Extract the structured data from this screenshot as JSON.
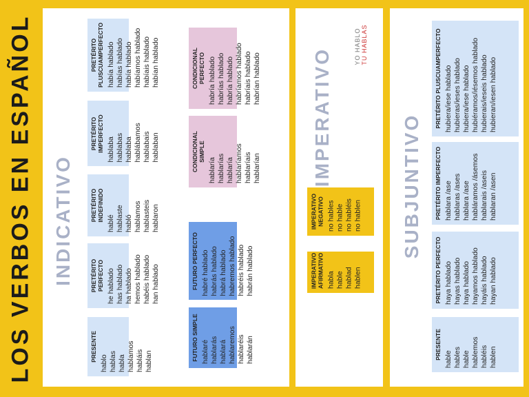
{
  "main_title": "LOS VERBOS EN ESPAÑOL",
  "logo": {
    "line1": "YO HABLO",
    "line2": "TU HABLAS"
  },
  "indicativo": {
    "title": "INDICATIVO",
    "presente": {
      "header": "PRESENTE",
      "forms": [
        "hablo",
        "hablas",
        "habla",
        "hablamos",
        "habláis",
        "hablan"
      ]
    },
    "preterito_perfecto": {
      "header": "PRETÉRITO PERFECTO",
      "forms": [
        "he hablado",
        "has hablado",
        "ha hablado",
        "hemos hablado",
        "habéis hablado",
        "han hablado"
      ]
    },
    "preterito_indefinido": {
      "header": "PRETÉRITO INDEFINIDO",
      "forms": [
        "hablé",
        "hablaste",
        "habló",
        "hablamos",
        "hablasteis",
        "hablaron"
      ]
    },
    "preterito_imperfecto": {
      "header": "PRETÉRITO IMPERFECTO",
      "forms": [
        "hablaba",
        "hablabas",
        "hablaba",
        "hablábamos",
        "hablabais",
        "hablaban"
      ]
    },
    "preterito_pluscuamperfecto": {
      "header": "PRETÉRITO PLUSCUAMPERFECTO",
      "forms": [
        "había hablado",
        "habías hablado",
        "había hablado",
        "habíamos hablado",
        "habíais hablado",
        "habían hablado"
      ]
    },
    "futuro_simple": {
      "header": "FUTURO SIMPLE",
      "forms": [
        "hablaré",
        "hablarás",
        "hablará",
        "hablaremos",
        "hablaréis",
        "hablarán"
      ]
    },
    "futuro_perfecto": {
      "header": "FUTURO PERFECTO",
      "forms": [
        "habré hablado",
        "habrás hablado",
        "habrá hablado",
        "habremos hablado",
        "habréis hablado",
        "habrán hablado"
      ]
    },
    "condicional_simple": {
      "header": "CONDICIONAL SIMPLE",
      "forms": [
        "hablaría",
        "hablarías",
        "hablaría",
        "hablaríamos",
        "hablaríais",
        "hablarían"
      ]
    },
    "condicional_perfecto": {
      "header": "CONDICIONAL PERFECTO",
      "forms": [
        "habría hablado",
        "habrías hablado",
        "habría hablado",
        "habríamos hablado",
        "habríais hablado",
        "habrían hablado"
      ]
    }
  },
  "imperativo": {
    "title": "IMPERATIVO",
    "afirmativo": {
      "header": "IMPERATIVO AFIRMATIVO",
      "forms": [
        "habla",
        "hable",
        "hablad",
        "hablen"
      ]
    },
    "negativo": {
      "header": "IMPERATIVO NEGATIVO",
      "forms": [
        "no hables",
        "no hable",
        "no habléis",
        "no hablen"
      ]
    }
  },
  "subjuntivo": {
    "title": "SUBJUNTIVO",
    "presente": {
      "header": "PRESENTE",
      "forms": [
        "hable",
        "hables",
        "hable",
        "hablemos",
        "habléis",
        "hablen"
      ]
    },
    "preterito_perfecto": {
      "header": "PRETÉRITO PERFECTO",
      "forms": [
        "haya hablado",
        "hayas hablado",
        "haya hablado",
        "hayamos hablado",
        "hayáis hablado",
        "hayan hablado"
      ]
    },
    "preterito_imperfecto": {
      "header": "PRETÉRITO IMPERFECTO",
      "forms": [
        "hablara /ase",
        "hablaras /ases",
        "hablara /ase",
        "habláramos /ásemos",
        "hablarais /aseis",
        "hablaran /asen"
      ]
    },
    "preterito_pluscuamperfecto": {
      "header": "PRETÉRITO PLUSCUAMPERFECTO",
      "forms": [
        "hubiera/iese hablado",
        "hubieras/ieses hablado",
        "hubiera/iese hablado",
        "hubiéramos/iésemos hablado",
        "hubierais/ieseis hablado",
        "hubieran/iesen hablado"
      ]
    }
  },
  "colors": {
    "yellow": "#f2c318",
    "light_blue": "#d4e4f7",
    "blue": "#6f9ee6",
    "pink": "#e6c6db",
    "title_grey": "#a9b1c7"
  }
}
